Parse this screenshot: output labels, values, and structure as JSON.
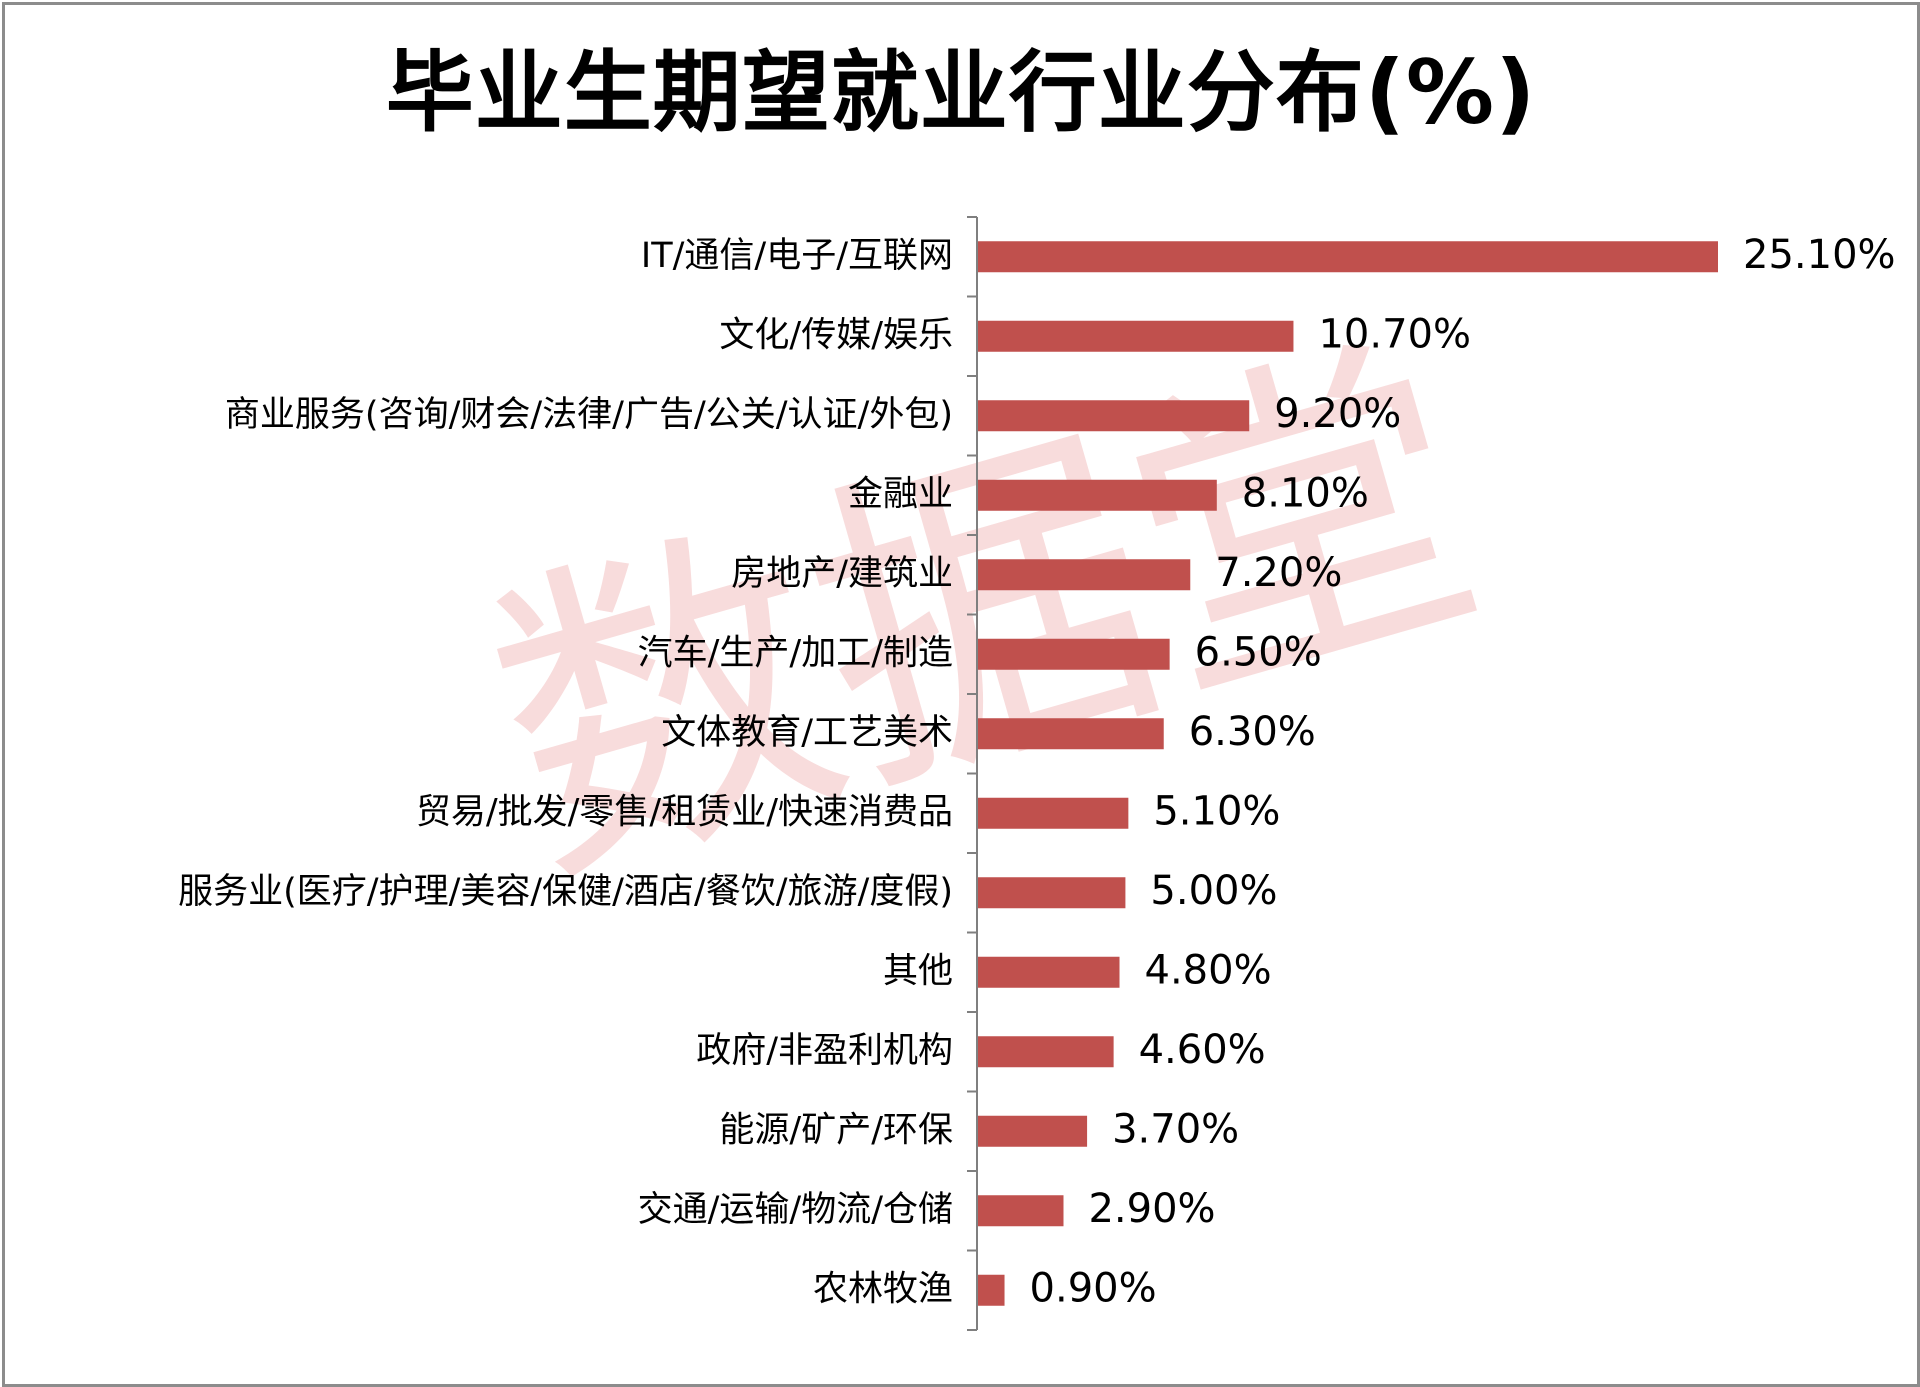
{
  "watermark": "数据堂",
  "colors": {
    "bar": "#c0504d",
    "axis": "#7f7f7f",
    "watermark": "#f7d6d6"
  },
  "chart_data": {
    "type": "bar",
    "orientation": "horizontal",
    "title": "毕业生期望就业行业分布(%)",
    "categories": [
      "IT/通信/电子/互联网",
      "文化/传媒/娱乐",
      "商业服务(咨询/财会/法律/广告/公关/认证/外包)",
      "金融业",
      "房地产/建筑业",
      "汽车/生产/加工/制造",
      "文体教育/工艺美术",
      "贸易/批发/零售/租赁业/快速消费品",
      "服务业(医疗/护理/美容/保健/酒店/餐饮/旅游/度假)",
      "其他",
      "政府/非盈利机构",
      "能源/矿产/环保",
      "交通/运输/物流/仓储",
      "农林牧渔"
    ],
    "values": [
      25.1,
      10.7,
      9.2,
      8.1,
      7.2,
      6.5,
      6.3,
      5.1,
      5.0,
      4.8,
      4.6,
      3.7,
      2.9,
      0.9
    ],
    "data_labels": [
      "25.10%",
      "10.70%",
      "9.20%",
      "8.10%",
      "7.20%",
      "6.50%",
      "6.30%",
      "5.10%",
      "5.00%",
      "4.80%",
      "4.60%",
      "3.70%",
      "2.90%",
      "0.90%"
    ],
    "xlim": [
      0,
      25.1
    ],
    "grid": false,
    "legend": "none"
  }
}
